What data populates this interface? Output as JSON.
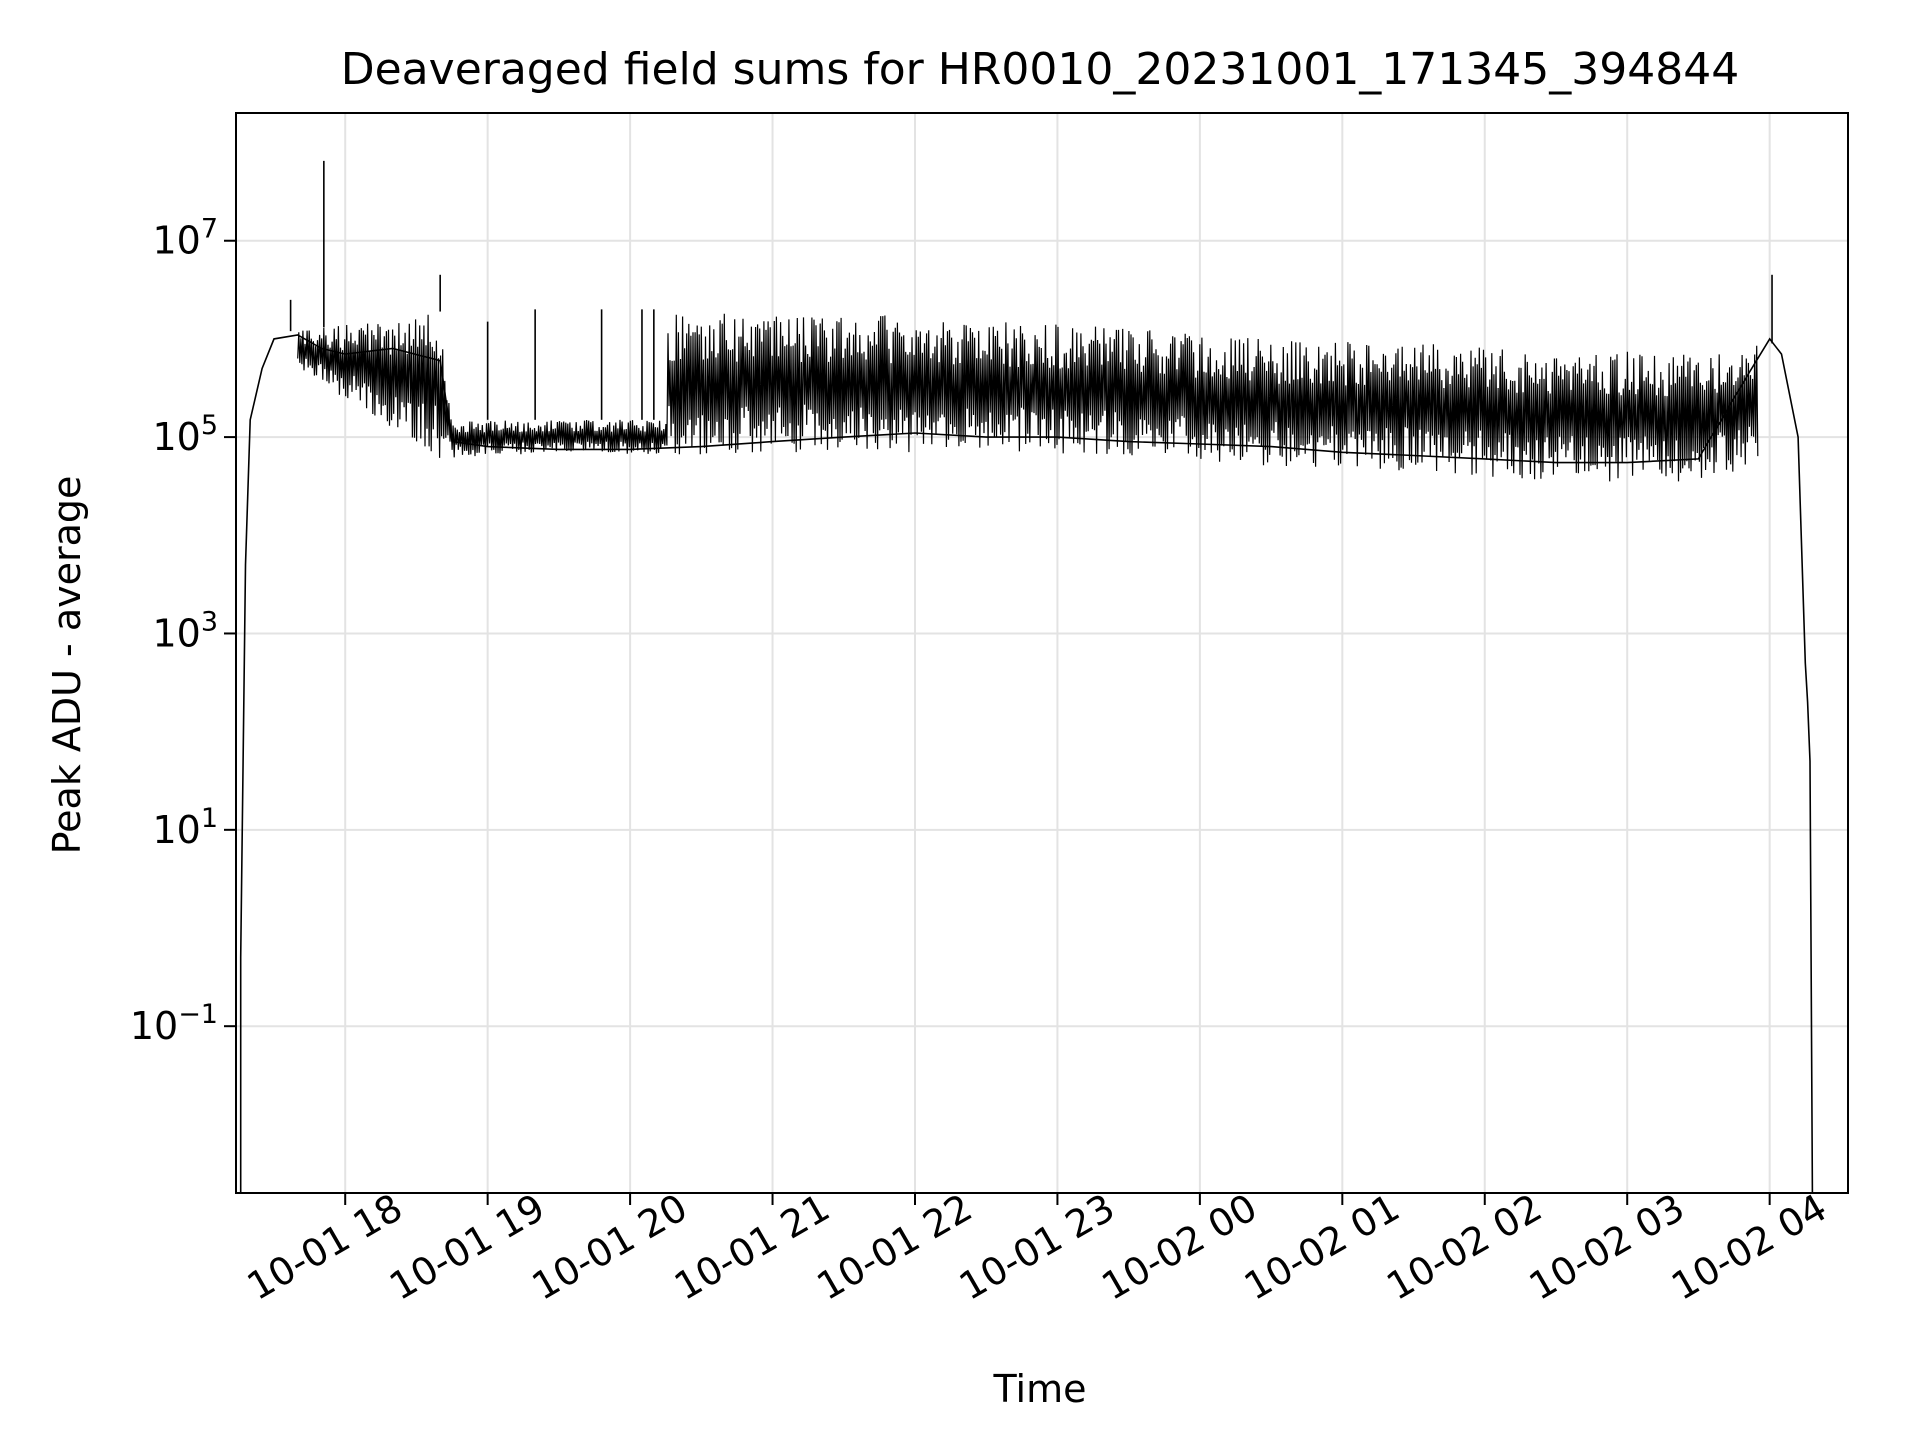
{
  "chart_data": {
    "type": "line",
    "title": "Deaveraged field sums for HR0010_20231001_171345_394844",
    "xlabel": "Time",
    "ylabel": "Peak ADU - average",
    "yscale": "log",
    "ylim": [
      0.002,
      200000000
    ],
    "xlim": [
      "2023-10-01 17:14",
      "2023-10-02 04:33"
    ],
    "grid": true,
    "line_color": "#000000",
    "x_ticks": [
      {
        "value": "2023-10-01 18:00",
        "label": "10-01 18"
      },
      {
        "value": "2023-10-01 19:00",
        "label": "10-01 19"
      },
      {
        "value": "2023-10-01 20:00",
        "label": "10-01 20"
      },
      {
        "value": "2023-10-01 21:00",
        "label": "10-01 21"
      },
      {
        "value": "2023-10-01 22:00",
        "label": "10-01 22"
      },
      {
        "value": "2023-10-01 23:00",
        "label": "10-01 23"
      },
      {
        "value": "2023-10-02 00:00",
        "label": "10-02 00"
      },
      {
        "value": "2023-10-02 01:00",
        "label": "10-02 01"
      },
      {
        "value": "2023-10-02 02:00",
        "label": "10-02 02"
      },
      {
        "value": "2023-10-02 03:00",
        "label": "10-02 03"
      },
      {
        "value": "2023-10-02 04:00",
        "label": "10-02 04"
      }
    ],
    "y_ticks": [
      {
        "value": 0.1,
        "base": "10",
        "exp": "−1"
      },
      {
        "value": 10,
        "base": "10",
        "exp": "1"
      },
      {
        "value": 1000,
        "base": "10",
        "exp": "3"
      },
      {
        "value": 100000,
        "base": "10",
        "exp": "5"
      },
      {
        "value": 10000000,
        "base": "10",
        "exp": "7"
      }
    ],
    "series": [
      {
        "baseline_points": [
          [
            "2023-10-01 17:16",
            0.002
          ],
          [
            "2023-10-01 17:16",
            0.5
          ],
          [
            "2023-10-01 17:18",
            5000
          ],
          [
            "2023-10-01 17:20",
            150000
          ],
          [
            "2023-10-01 17:25",
            500000
          ],
          [
            "2023-10-01 17:30",
            1000000
          ],
          [
            "2023-10-01 17:40",
            1100000
          ],
          [
            "2023-10-01 17:50",
            800000
          ],
          [
            "2023-10-01 18:00",
            700000
          ],
          [
            "2023-10-01 18:20",
            800000
          ],
          [
            "2023-10-01 18:40",
            600000
          ],
          [
            "2023-10-01 18:45",
            90000
          ],
          [
            "2023-10-01 19:00",
            80000
          ],
          [
            "2023-10-01 19:30",
            75000
          ],
          [
            "2023-10-01 20:00",
            75000
          ],
          [
            "2023-10-01 20:30",
            80000
          ],
          [
            "2023-10-01 21:00",
            90000
          ],
          [
            "2023-10-01 21:30",
            100000
          ],
          [
            "2023-10-01 22:00",
            110000
          ],
          [
            "2023-10-01 22:30",
            100000
          ],
          [
            "2023-10-01 23:00",
            100000
          ],
          [
            "2023-10-01 23:30",
            90000
          ],
          [
            "2023-10-02 00:00",
            85000
          ],
          [
            "2023-10-02 00:30",
            80000
          ],
          [
            "2023-10-02 01:00",
            70000
          ],
          [
            "2023-10-02 01:30",
            65000
          ],
          [
            "2023-10-02 02:00",
            60000
          ],
          [
            "2023-10-02 02:30",
            55000
          ],
          [
            "2023-10-02 03:00",
            55000
          ],
          [
            "2023-10-02 03:30",
            60000
          ],
          [
            "2023-10-02 03:50",
            400000
          ],
          [
            "2023-10-02 04:00",
            1000000
          ],
          [
            "2023-10-02 04:05",
            700000
          ],
          [
            "2023-10-02 04:12",
            100000
          ],
          [
            "2023-10-02 04:15",
            500
          ],
          [
            "2023-10-02 04:16",
            200
          ],
          [
            "2023-10-02 04:17",
            50
          ],
          [
            "2023-10-02 04:18",
            0.002
          ]
        ],
        "band_upper": [
          [
            "2023-10-01 17:40",
            1200000
          ],
          [
            "2023-10-01 18:40",
            1900000
          ],
          [
            "2023-10-01 18:45",
            150000
          ],
          [
            "2023-10-01 20:15",
            150000
          ],
          [
            "2023-10-01 20:16",
            1900000
          ],
          [
            "2023-10-01 21:30",
            1800000
          ],
          [
            "2023-10-01 22:30",
            1600000
          ],
          [
            "2023-10-01 23:30",
            1300000
          ],
          [
            "2023-10-02 00:30",
            1000000
          ],
          [
            "2023-10-02 01:30",
            900000
          ],
          [
            "2023-10-02 02:30",
            800000
          ],
          [
            "2023-10-02 03:30",
            700000
          ],
          [
            "2023-10-02 03:55",
            900000
          ]
        ],
        "band_lower": [
          [
            "2023-10-01 17:40",
            500000
          ],
          [
            "2023-10-01 18:40",
            60000
          ],
          [
            "2023-10-01 19:30",
            70000
          ],
          [
            "2023-10-01 20:30",
            65000
          ],
          [
            "2023-10-01 21:30",
            70000
          ],
          [
            "2023-10-01 22:30",
            70000
          ],
          [
            "2023-10-01 23:30",
            65000
          ],
          [
            "2023-10-02 00:30",
            50000
          ],
          [
            "2023-10-02 01:30",
            45000
          ],
          [
            "2023-10-02 02:30",
            35000
          ],
          [
            "2023-10-02 03:30",
            35000
          ],
          [
            "2023-10-02 03:55",
            50000
          ]
        ],
        "spikes": [
          [
            "2023-10-01 17:37",
            2500000
          ],
          [
            "2023-10-01 17:51",
            65000000
          ],
          [
            "2023-10-01 18:40",
            4500000
          ],
          [
            "2023-10-01 19:00",
            1500000
          ],
          [
            "2023-10-01 19:20",
            2000000
          ],
          [
            "2023-10-01 19:48",
            2000000
          ],
          [
            "2023-10-01 20:05",
            2000000
          ],
          [
            "2023-10-01 20:10",
            2000000
          ],
          [
            "2023-10-02 04:01",
            4500000
          ]
        ]
      }
    ]
  }
}
